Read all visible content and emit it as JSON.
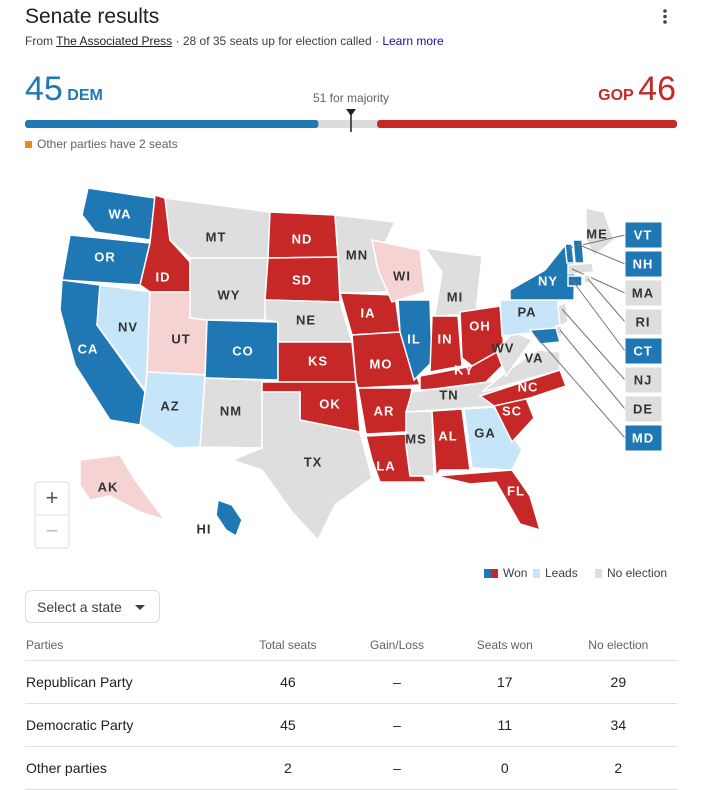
{
  "header": {
    "title": "Senate results",
    "source_prefix": "From",
    "source": "The Associated Press",
    "called": "· 28 of 35 seats up for election called ·",
    "learn_more": "Learn more"
  },
  "tally": {
    "dem_seats": 45,
    "dem_label": "DEM",
    "gop_label": "GOP",
    "gop_seats": 46,
    "majority": 51,
    "majority_label": "for majority",
    "dem_color": "#1f77b4",
    "gop_color": "#c62828",
    "other_note": "Other parties have 2 seats",
    "other_color": "#e8891d"
  },
  "map": {
    "states": [
      {
        "label": "WA",
        "color": "#1f77b4"
      },
      {
        "label": "OR",
        "color": "#1f77b4"
      },
      {
        "label": "CA",
        "color": "#1f77b4"
      },
      {
        "label": "NV",
        "color": "#c6e5f9"
      },
      {
        "label": "ID",
        "color": "#c62828"
      },
      {
        "label": "MT",
        "color": "#dedede"
      },
      {
        "label": "WY",
        "color": "#dedede"
      },
      {
        "label": "UT",
        "color": "#f6d3d3"
      },
      {
        "label": "AZ",
        "color": "#c6e5f9"
      },
      {
        "label": "CO",
        "color": "#1f77b4"
      },
      {
        "label": "NM",
        "color": "#dedede"
      },
      {
        "label": "ND",
        "color": "#c62828"
      },
      {
        "label": "SD",
        "color": "#c62828"
      },
      {
        "label": "NE",
        "color": "#dedede"
      },
      {
        "label": "KS",
        "color": "#c62828"
      },
      {
        "label": "OK",
        "color": "#c62828"
      },
      {
        "label": "TX",
        "color": "#dedede"
      },
      {
        "label": "MN",
        "color": "#dedede"
      },
      {
        "label": "IA",
        "color": "#c62828"
      },
      {
        "label": "MO",
        "color": "#c62828"
      },
      {
        "label": "AR",
        "color": "#c62828"
      },
      {
        "label": "LA",
        "color": "#c62828"
      },
      {
        "label": "WI",
        "color": "#f6d3d3"
      },
      {
        "label": "IL",
        "color": "#1f77b4"
      },
      {
        "label": "MI",
        "color": "#dedede"
      },
      {
        "label": "IN",
        "color": "#c62828"
      },
      {
        "label": "OH",
        "color": "#c62828"
      },
      {
        "label": "KY",
        "color": "#c62828"
      },
      {
        "label": "TN",
        "color": "#dedede"
      },
      {
        "label": "MS",
        "color": "#dedede"
      },
      {
        "label": "AL",
        "color": "#c62828"
      },
      {
        "label": "GA",
        "color": "#c6e5f9"
      },
      {
        "label": "FL",
        "color": "#c62828"
      },
      {
        "label": "SC",
        "color": "#c62828"
      },
      {
        "label": "NC",
        "color": "#c62828"
      },
      {
        "label": "VA",
        "color": "#dedede"
      },
      {
        "label": "WV",
        "color": "#dedede"
      },
      {
        "label": "PA",
        "color": "#c6e5f9"
      },
      {
        "label": "NY",
        "color": "#1f77b4"
      },
      {
        "label": "ME",
        "color": "#dedede"
      },
      {
        "label": "VT",
        "color": "#1f77b4"
      },
      {
        "label": "NH",
        "color": "#1f77b4"
      },
      {
        "label": "MA",
        "color": "#dedede"
      },
      {
        "label": "RI",
        "color": "#dedede"
      },
      {
        "label": "CT",
        "color": "#1f77b4"
      },
      {
        "label": "NJ",
        "color": "#dedede"
      },
      {
        "label": "DE",
        "color": "#dedede"
      },
      {
        "label": "MD",
        "color": "#1f77b4"
      },
      {
        "label": "AK",
        "color": "#f6d3d3"
      },
      {
        "label": "HI",
        "color": "#1f77b4"
      }
    ],
    "zoom_in": "+",
    "zoom_out": "−",
    "legend": [
      {
        "label": "Won",
        "colors": [
          "#1f77b4",
          "#c62828"
        ]
      },
      {
        "label": "Leads",
        "colors": [
          "#c6e5f9"
        ]
      },
      {
        "label": "No election",
        "colors": [
          "#dedede"
        ]
      }
    ]
  },
  "select": {
    "label": "Select a state"
  },
  "table": {
    "headers": [
      "Parties",
      "Total seats",
      "Gain/Loss",
      "Seats won",
      "No election"
    ],
    "rows": [
      [
        "Republican Party",
        "46",
        "–",
        "17",
        "29"
      ],
      [
        "Democratic Party",
        "45",
        "–",
        "11",
        "34"
      ],
      [
        "Other parties",
        "2",
        "–",
        "0",
        "2"
      ]
    ]
  }
}
